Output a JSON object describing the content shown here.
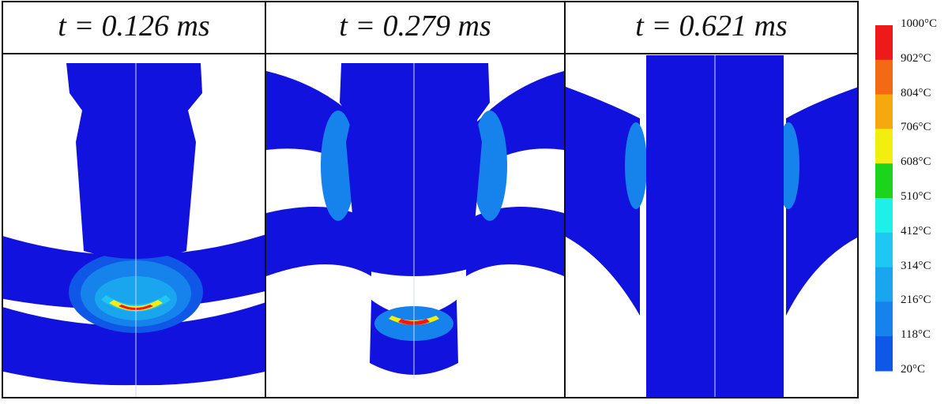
{
  "panels": [
    {
      "title": "t = 0.126 ms"
    },
    {
      "title": "t = 0.279 ms"
    },
    {
      "title": "t = 0.621 ms"
    }
  ],
  "legend": {
    "labels": [
      "1000°C",
      "902°C",
      "804°C",
      "706°C",
      "608°C",
      "510°C",
      "412°C",
      "314°C",
      "216°C",
      "118°C",
      "20°C"
    ],
    "colors": [
      "#ee1a1a",
      "#f46a14",
      "#f6a80f",
      "#f2ee10",
      "#1bd41b",
      "#1ef0e8",
      "#1ec8f2",
      "#1aa6ef",
      "#1682ec",
      "#0f57e7",
      "#1212de"
    ]
  }
}
